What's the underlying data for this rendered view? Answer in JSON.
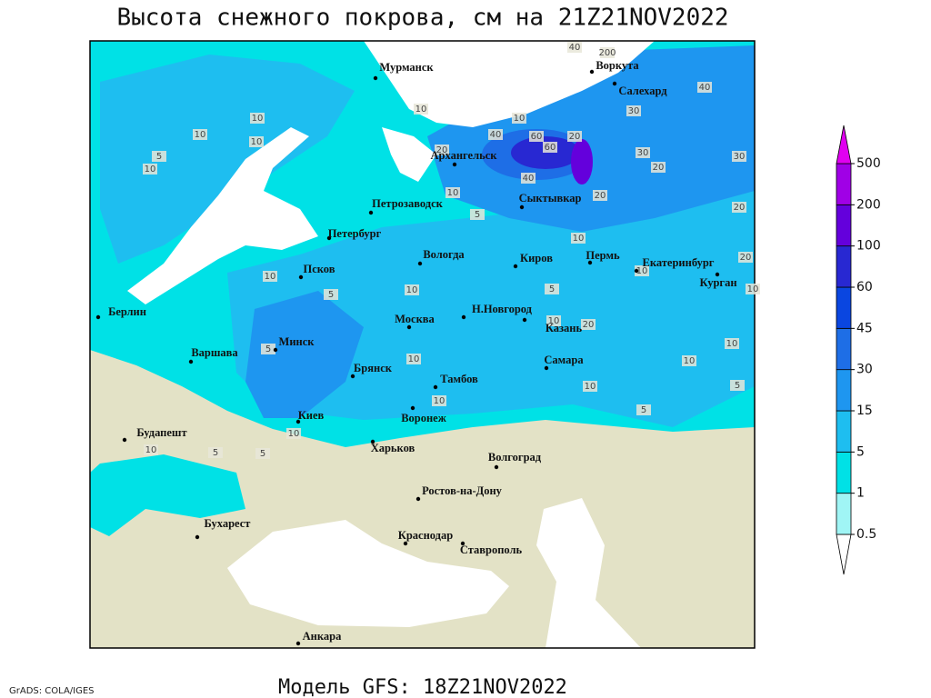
{
  "title": "Высота снежного покрова, см на 21Z21NOV2022",
  "footer": {
    "credit": "GrADS: COLA/IGES",
    "model": "Модель GFS: 18Z21NOV2022"
  },
  "legend": {
    "levels": [
      0.5,
      1,
      5,
      15,
      30,
      45,
      60,
      100,
      200,
      500
    ],
    "colors": [
      "#a0f5f5",
      "#00e1e6",
      "#1ebef0",
      "#1e96f0",
      "#1e6ee6",
      "#0a46e0",
      "#2828d2",
      "#6400dc",
      "#a000e6",
      "#e000f0"
    ],
    "below_color": "#ffffff"
  },
  "cities": [
    "Мурманск",
    "Воркута",
    "Салехард",
    "Архангельск",
    "Сыктывкар",
    "Петрозаводск",
    "Петербург",
    "Вологда",
    "Киров",
    "Пермь",
    "Екатеринбург",
    "Курган",
    "Псков",
    "Н.Новгород",
    "Москва",
    "Казань",
    "Берлин",
    "Минск",
    "Варшава",
    "Самара",
    "Брянск",
    "Тамбов",
    "Киев",
    "Воронеж",
    "Будапешт",
    "Харьков",
    "Волгоград",
    "Ростов-на-Дону",
    "Бухарест",
    "Краснодар",
    "Ставрополь",
    "Анкара"
  ],
  "contour_labels": [
    40,
    200,
    40,
    10,
    10,
    10,
    10,
    5,
    10,
    20,
    10,
    30,
    40,
    60,
    60,
    20,
    30,
    20,
    40,
    30,
    10,
    5,
    20,
    20,
    10,
    20,
    10,
    10,
    5,
    10,
    5,
    10,
    20,
    10,
    10,
    5,
    10,
    10,
    10,
    5,
    5,
    10,
    5,
    5,
    10,
    10
  ]
}
